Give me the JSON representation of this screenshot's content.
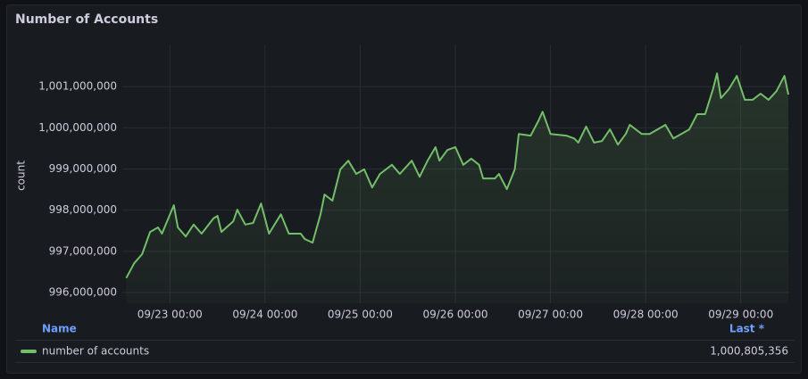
{
  "chart_data": {
    "type": "line",
    "title": "Number of Accounts",
    "y_label": "count",
    "x": [
      "09/22 13:00",
      "09/22 15:00",
      "09/22 17:00",
      "09/22 19:00",
      "09/22 21:00",
      "09/22 22:00",
      "09/23 01:00",
      "09/23 02:00",
      "09/23 04:00",
      "09/23 06:00",
      "09/23 08:00",
      "09/23 11:00",
      "09/23 12:00",
      "09/23 13:00",
      "09/23 16:00",
      "09/23 17:00",
      "09/23 19:00",
      "09/23 21:00",
      "09/23 23:00",
      "09/24 01:00",
      "09/24 04:00",
      "09/24 06:00",
      "09/24 09:00",
      "09/24 10:00",
      "09/24 12:00",
      "09/24 14:00",
      "09/24 15:00",
      "09/24 17:00",
      "09/24 19:00",
      "09/24 21:00",
      "09/24 23:00",
      "09/25 01:00",
      "09/25 03:00",
      "09/25 05:00",
      "09/25 08:00",
      "09/25 10:00",
      "09/25 13:00",
      "09/25 15:00",
      "09/25 17:00",
      "09/25 19:00",
      "09/25 20:00",
      "09/25 22:00",
      "09/26 00:00",
      "09/26 02:00",
      "09/26 04:00",
      "09/26 06:00",
      "09/26 07:00",
      "09/26 10:00",
      "09/26 11:00",
      "09/26 13:00",
      "09/26 15:00",
      "09/26 16:00",
      "09/26 19:00",
      "09/26 21:00",
      "09/26 22:00",
      "09/27 00:00",
      "09/27 04:00",
      "09/27 06:00",
      "09/27 07:00",
      "09/27 09:00",
      "09/27 11:00",
      "09/27 13:00",
      "09/27 15:00",
      "09/27 17:00",
      "09/27 19:00",
      "09/27 20:00",
      "09/27 23:00",
      "09/28 01:00",
      "09/28 03:00",
      "09/28 05:00",
      "09/28 07:00",
      "09/28 09:00",
      "09/28 11:00",
      "09/28 13:00",
      "09/28 15:00",
      "09/28 17:00",
      "09/28 18:00",
      "09/28 19:00",
      "09/28 21:00",
      "09/28 23:00",
      "09/29 01:00",
      "09/29 03:00",
      "09/29 05:00",
      "09/29 07:00",
      "09/29 09:00",
      "09/29 11:00",
      "09/29 12:00"
    ],
    "series": [
      {
        "name": "number of accounts",
        "color": "#73bf69",
        "values": [
          996350000,
          996710000,
          996930000,
          997470000,
          997580000,
          997430000,
          998120000,
          997580000,
          997360000,
          997650000,
          997430000,
          997800000,
          997860000,
          997470000,
          997730000,
          998010000,
          997650000,
          997690000,
          998160000,
          997430000,
          997900000,
          997430000,
          997430000,
          997300000,
          997210000,
          997900000,
          998380000,
          998230000,
          998990000,
          999200000,
          998880000,
          998990000,
          998550000,
          998880000,
          999100000,
          998880000,
          999200000,
          998810000,
          999200000,
          999530000,
          999200000,
          999460000,
          999530000,
          999100000,
          999250000,
          999100000,
          998770000,
          998770000,
          998880000,
          998510000,
          998990000,
          999850000,
          999810000,
          1000180000,
          1000390000,
          999850000,
          999810000,
          999740000,
          999640000,
          1000030000,
          999640000,
          999680000,
          999960000,
          999590000,
          999850000,
          1000070000,
          999850000,
          999850000,
          999960000,
          1000070000,
          999740000,
          999850000,
          999960000,
          1000330000,
          1000330000,
          1000940000,
          1001320000,
          1000720000,
          1000940000,
          1001260000,
          1000680000,
          1000680000,
          1000830000,
          1000680000,
          1000890000,
          1001260000,
          1000805356
        ],
        "last_label": "1,000,805,356"
      }
    ],
    "xlim": [
      "09/22 12:00",
      "09/29 12:00"
    ],
    "xticks": [
      "09/23 00:00",
      "09/24 00:00",
      "09/25 00:00",
      "09/26 00:00",
      "09/27 00:00",
      "09/28 00:00",
      "09/29 00:00"
    ],
    "ylim": [
      995740000,
      1002020000
    ],
    "yticks": [
      {
        "value": 996000000,
        "label": "996,000,000"
      },
      {
        "value": 997000000,
        "label": "997,000,000"
      },
      {
        "value": 998000000,
        "label": "998,000,000"
      },
      {
        "value": 999000000,
        "label": "999,000,000"
      },
      {
        "value": 1000000000,
        "label": "1,000,000,000"
      },
      {
        "value": 1001000000,
        "label": "1,001,000,000"
      }
    ],
    "grid": true,
    "legend": {
      "name_header": "Name",
      "value_header": "Last *"
    }
  }
}
